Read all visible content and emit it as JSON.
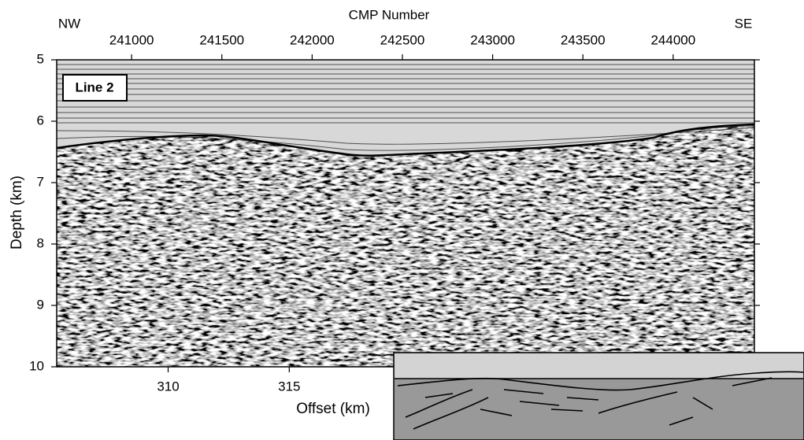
{
  "chart_data": {
    "type": "seismic",
    "title": "CMP Number",
    "left_direction": "NW",
    "right_direction": "SE",
    "panel_label": "Line 2",
    "xlabel": "Offset (km)",
    "ylabel": "Depth (km)",
    "x2lim": [
      240585,
      244450
    ],
    "x2ticks": [
      241000,
      241500,
      242000,
      242500,
      243000,
      243500,
      244000
    ],
    "xlim": [
      305.4,
      334.2
    ],
    "xticks": [
      310,
      315
    ],
    "ylim": [
      5,
      10
    ],
    "yticks": [
      5,
      6,
      7,
      8,
      9,
      10
    ],
    "y_inverted": true
  }
}
